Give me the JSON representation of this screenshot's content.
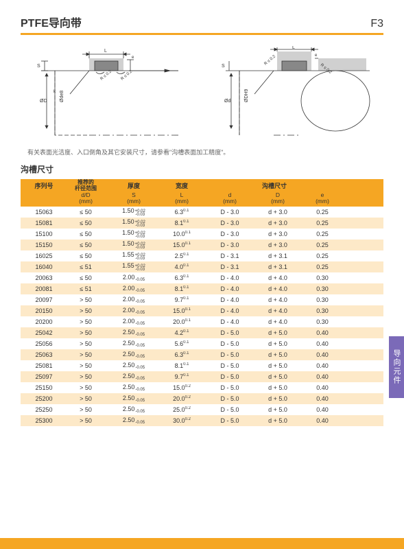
{
  "header": {
    "title": "PTFE导向带",
    "code": "F3"
  },
  "note": "有关表面光洁度、入口倒角及其它安装尺寸，请参看\"沟槽表面加工精度\"。",
  "section_title": "沟槽尺寸",
  "side_tab": "导向元件",
  "table": {
    "headers": {
      "series": "序列号",
      "dD_range": "推荐的\n杆径范围",
      "thickness": "厚度",
      "width": "宽度",
      "groove": "沟槽尺寸",
      "dD_unit": "d/D\n(mm)",
      "S_unit": "S\n(mm)",
      "L_unit": "L\n(mm)",
      "d_unit": "d\n(mm)",
      "D_unit": "D\n(mm)",
      "e_unit": "e\n(mm)"
    },
    "rows": [
      {
        "series": "15063",
        "dD": "≤ 50",
        "S": "1.50",
        "Stol": [
          "+0.02",
          "-0.03"
        ],
        "L": "6.3",
        "Ltol": "0.1",
        "d": "D -  3.0",
        "D": "d +  3.0",
        "e": "0.25"
      },
      {
        "series": "15081",
        "dD": "≤ 50",
        "S": "1.50",
        "Stol": [
          "+0.02",
          "-0.03"
        ],
        "L": "8.1",
        "Ltol": "0.1",
        "d": "D -  3.0",
        "D": "d +  3.0",
        "e": "0.25"
      },
      {
        "series": "15100",
        "dD": "≤ 50",
        "S": "1.50",
        "Stol": [
          "+0.02",
          "-0.03"
        ],
        "L": "10.0",
        "Ltol": "0.1",
        "d": "D -  3.0",
        "D": "d +  3.0",
        "e": "0.25"
      },
      {
        "series": "15150",
        "dD": "≤ 50",
        "S": "1.50",
        "Stol": [
          "+0.02",
          "-0.03"
        ],
        "L": "15.0",
        "Ltol": "0.1",
        "d": "D -  3.0",
        "D": "d +  3.0",
        "e": "0.25"
      },
      {
        "series": "16025",
        "dD": "≤ 50",
        "S": "1.55",
        "Stol": [
          "+0.02",
          "-0.03"
        ],
        "L": "2.5",
        "Ltol": "0.1",
        "d": "D -  3.1",
        "D": "d +  3.1",
        "e": "0.25"
      },
      {
        "series": "16040",
        "dD": "≤ 51",
        "S": "1.55",
        "Stol": [
          "+0.02",
          "-0.03"
        ],
        "L": "4.0",
        "Ltol": "0.1",
        "d": "D -  3.1",
        "D": "d +  3.1",
        "e": "0.25"
      },
      {
        "series": "20063",
        "dD": "≤ 50",
        "S": "2.00",
        "Stol": [
          "",
          "-0.05"
        ],
        "L": "6.3",
        "Ltol": "0.1",
        "d": "D -  4.0",
        "D": "d +  4.0",
        "e": "0.30"
      },
      {
        "series": "20081",
        "dD": "≤ 51",
        "S": "2.00",
        "Stol": [
          "",
          "-0.05"
        ],
        "L": "8.1",
        "Ltol": "0.1",
        "d": "D -  4.0",
        "D": "d +  4.0",
        "e": "0.30"
      },
      {
        "series": "20097",
        "dD": "> 50",
        "S": "2.00",
        "Stol": [
          "",
          "-0.05"
        ],
        "L": "9.7",
        "Ltol": "0.1",
        "d": "D -  4.0",
        "D": "d +  4.0",
        "e": "0.30"
      },
      {
        "series": "20150",
        "dD": "> 50",
        "S": "2.00",
        "Stol": [
          "",
          "-0.05"
        ],
        "L": "15.0",
        "Ltol": "0.1",
        "d": "D -  4.0",
        "D": "d +  4.0",
        "e": "0.30"
      },
      {
        "series": "20200",
        "dD": "> 50",
        "S": "2.00",
        "Stol": [
          "",
          "-0.05"
        ],
        "L": "20.0",
        "Ltol": "0.1",
        "d": "D -  4.0",
        "D": "d +  4.0",
        "e": "0.30"
      },
      {
        "series": "25042",
        "dD": "> 50",
        "S": "2.50",
        "Stol": [
          "",
          "-0.05"
        ],
        "L": "4.2",
        "Ltol": "0.1",
        "d": "D -  5.0",
        "D": "d +  5.0",
        "e": "0.40"
      },
      {
        "series": "25056",
        "dD": "> 50",
        "S": "2.50",
        "Stol": [
          "",
          "-0.05"
        ],
        "L": "5.6",
        "Ltol": "0.1",
        "d": "D -  5.0",
        "D": "d +  5.0",
        "e": "0.40"
      },
      {
        "series": "25063",
        "dD": "> 50",
        "S": "2.50",
        "Stol": [
          "",
          "-0.05"
        ],
        "L": "6.3",
        "Ltol": "0.1",
        "d": "D -  5.0",
        "D": "d +  5.0",
        "e": "0.40"
      },
      {
        "series": "25081",
        "dD": "> 50",
        "S": "2.50",
        "Stol": [
          "",
          "-0.05"
        ],
        "L": "8.1",
        "Ltol": "0.1",
        "d": "D -  5.0",
        "D": "d +  5.0",
        "e": "0.40"
      },
      {
        "series": "25097",
        "dD": "> 50",
        "S": "2.50",
        "Stol": [
          "",
          "-0.05"
        ],
        "L": "9.7",
        "Ltol": "0.1",
        "d": "D -  5.0",
        "D": "d +  5.0",
        "e": "0.40"
      },
      {
        "series": "25150",
        "dD": "> 50",
        "S": "2.50",
        "Stol": [
          "",
          "-0.05"
        ],
        "L": "15.0",
        "Ltol": "0.2",
        "d": "D -  5.0",
        "D": "d +  5.0",
        "e": "0.40"
      },
      {
        "series": "25200",
        "dD": "> 50",
        "S": "2.50",
        "Stol": [
          "",
          "-0.05"
        ],
        "L": "20.0",
        "Ltol": "0.2",
        "d": "D -  5.0",
        "D": "d +  5.0",
        "e": "0.40"
      },
      {
        "series": "25250",
        "dD": "> 50",
        "S": "2.50",
        "Stol": [
          "",
          "-0.05"
        ],
        "L": "25.0",
        "Ltol": "0.2",
        "d": "D -  5.0",
        "D": "d +  5.0",
        "e": "0.40"
      },
      {
        "series": "25300",
        "dD": "> 50",
        "S": "2.50",
        "Stol": [
          "",
          "-0.05"
        ],
        "L": "30.0",
        "Ltol": "0.2",
        "d": "D -  5.0",
        "D": "d +  5.0",
        "e": "0.40"
      }
    ]
  },
  "diagram_labels": {
    "L": "L",
    "S": "S",
    "e": "e",
    "R": "R ≤ 0.2",
    "oD": "ØD",
    "oDe8": "Øde8",
    "od": "Ød",
    "oDH9": "ØDH9",
    "k": "k"
  }
}
